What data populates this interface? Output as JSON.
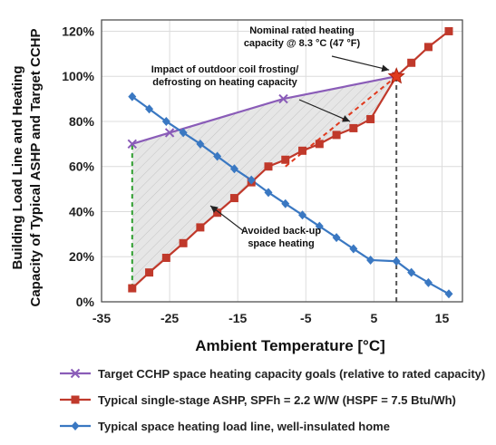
{
  "chart_data": {
    "type": "line",
    "xlabel": "Ambient Temperature [°C]",
    "ylabel_line1": "Building Load Line and Heating",
    "ylabel_line2": "Capacity of Typical ASHP and Target CCHP",
    "xlim": [
      -35,
      18
    ],
    "ylim": [
      0,
      125
    ],
    "x_ticks": [
      -35,
      -25,
      -15,
      -5,
      5,
      15
    ],
    "x_tick_labels": [
      "-35",
      "-25",
      "-15",
      "-5",
      "5",
      "15"
    ],
    "y_ticks": [
      0,
      20,
      40,
      60,
      80,
      100,
      120
    ],
    "y_tick_labels": [
      "0%",
      "20%",
      "40%",
      "60%",
      "80%",
      "100%",
      "120%"
    ],
    "grid": true,
    "legend_position": "bottom",
    "series": [
      {
        "name": "Target CCHP space heating capacity goals (relative to rated capacity)",
        "color": "#8a5cb8",
        "marker": "x",
        "x": [
          -30.5,
          -25,
          -8.3,
          8.3
        ],
        "y": [
          70,
          75,
          90,
          100
        ]
      },
      {
        "name": "Typical single-stage ASHP, SPFh = 2.2 W/W (HSPF = 7.5 Btu/Wh)",
        "color": "#c0392b",
        "marker": "square",
        "x": [
          -30.5,
          -28,
          -25.5,
          -23,
          -20.5,
          -18,
          -15.5,
          -13,
          -10.5,
          -8,
          -5.5,
          -3,
          -0.5,
          2,
          4.5,
          8.3,
          10.5,
          13,
          16
        ],
        "y": [
          6,
          13,
          19.5,
          26,
          33,
          39.5,
          46,
          53,
          60,
          63,
          67,
          70,
          74,
          77,
          81,
          100,
          106,
          113,
          120
        ]
      },
      {
        "name": "Typical space heating load line, well-insulated home",
        "color": "#3a78c2",
        "marker": "diamond",
        "x": [
          -30.5,
          -28,
          -25.5,
          -23,
          -20.5,
          -18,
          -15.5,
          -13,
          -10.5,
          -8,
          -5.5,
          -3,
          -0.5,
          2,
          4.5,
          8.3,
          10.5,
          13,
          16
        ],
        "y": [
          91,
          85.5,
          80,
          75,
          70,
          64.5,
          59,
          54,
          48.5,
          43.5,
          38.5,
          33.5,
          28.5,
          23.5,
          18.5,
          18,
          13,
          8.5,
          3.5
        ]
      }
    ],
    "reference_lines": [
      {
        "kind": "vertical",
        "x": -30.5,
        "y_from": 6,
        "y_to": 70,
        "color": "#2e9e2e",
        "style": "dashed"
      },
      {
        "kind": "vertical",
        "x": 8.3,
        "y_from": 0,
        "y_to": 100,
        "color": "#555555",
        "style": "dashed"
      },
      {
        "kind": "segment",
        "from": [
          -8,
          60
        ],
        "to": [
          8.3,
          100
        ],
        "color": "#e03a1e",
        "style": "dashed"
      }
    ],
    "rated_point": {
      "x": 8.3,
      "y": 100,
      "color": "#e03a1e"
    },
    "annotations": [
      {
        "id": "rated",
        "lines": [
          "Nominal rated heating",
          "capacity @ 8.3 °C (47 °F)"
        ]
      },
      {
        "id": "frost",
        "lines": [
          "Impact of outdoor coil frosting/",
          "defrosting on heating capacity"
        ]
      },
      {
        "id": "backup",
        "lines": [
          "Avoided back-up",
          "space heating"
        ]
      }
    ]
  }
}
